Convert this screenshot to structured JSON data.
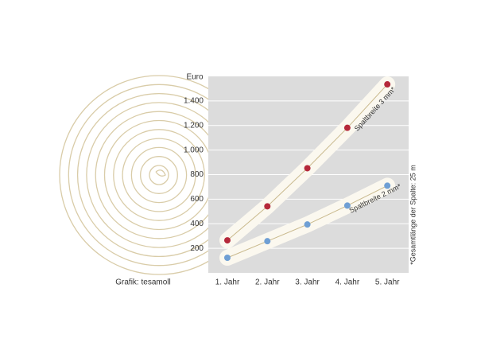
{
  "chart_data": {
    "type": "line",
    "y_label": "Euro",
    "credit": "Grafik: tesamoll",
    "footnote": "*Gesamtlänge der Spalte: 25 m",
    "categories": [
      "1. Jahr",
      "2. Jahr",
      "3. Jahr",
      "4. Jahr",
      "5. Jahr"
    ],
    "series": [
      {
        "name": "Spaltbreite 3 mm*",
        "color": "#b5283a",
        "values": [
          265,
          542,
          852,
          1181,
          1535
        ]
      },
      {
        "name": "Spaltbreite 2 mm*",
        "color": "#6f9fd4",
        "values": [
          123,
          258,
          394,
          548,
          710
        ]
      }
    ],
    "ylim": [
      0,
      1600
    ],
    "yticks": [
      200,
      400,
      600,
      800,
      {
        "value": 1000,
        "label": "1.000"
      },
      {
        "value": 1200,
        "label": "1.200"
      },
      {
        "value": 1400,
        "label": "1.400"
      }
    ],
    "grid": true
  }
}
